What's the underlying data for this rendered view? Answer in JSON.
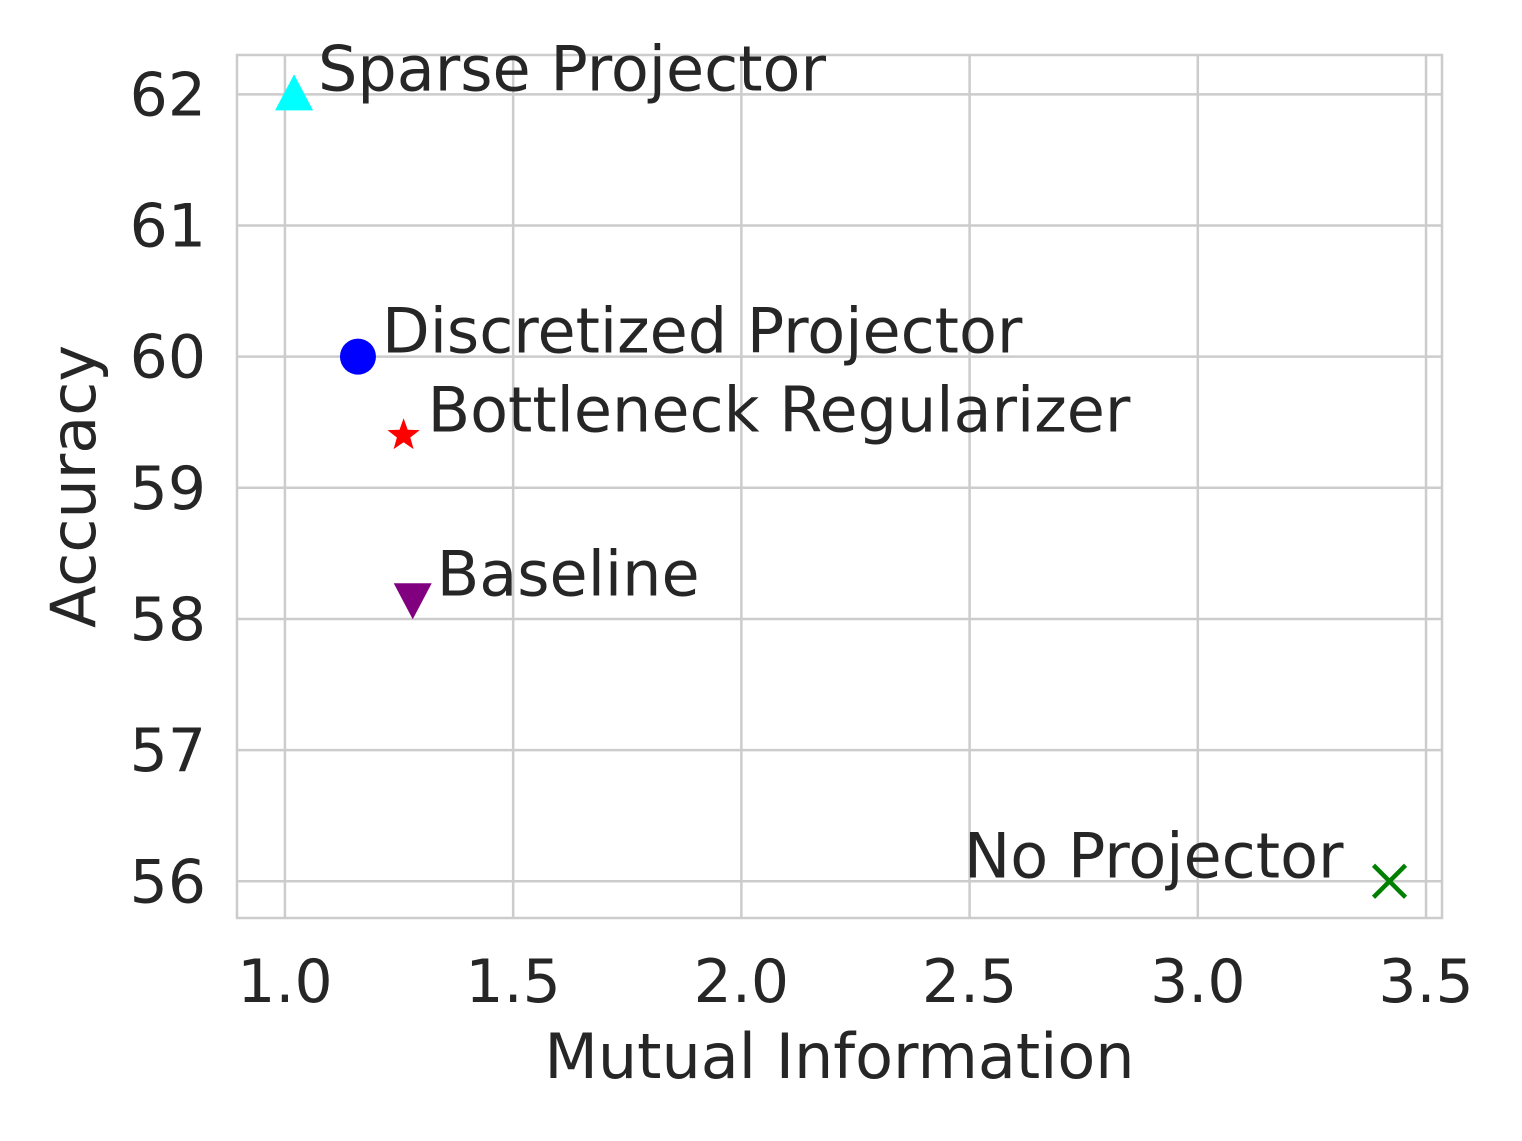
{
  "chart_data": {
    "type": "scatter",
    "title": "",
    "xlabel": "Mutual Information",
    "ylabel": "Accuracy",
    "xlim": [
      0.895,
      3.535
    ],
    "ylim": [
      55.72,
      62.3
    ],
    "xticks": [
      1.0,
      1.5,
      2.0,
      2.5,
      3.0,
      3.5
    ],
    "xtick_labels": [
      "1.0",
      "1.5",
      "2.0",
      "2.5",
      "3.0",
      "3.5"
    ],
    "yticks": [
      56,
      57,
      58,
      59,
      60,
      61,
      62
    ],
    "ytick_labels": [
      "56",
      "57",
      "58",
      "59",
      "60",
      "61",
      "62"
    ],
    "grid": true,
    "legend": "none",
    "points": [
      {
        "label": "Sparse Projector",
        "x": 1.02,
        "y": 62.0,
        "marker": "triangle-up",
        "color": "#00ffff",
        "label_side": "right"
      },
      {
        "label": "Discretized Projector",
        "x": 1.16,
        "y": 60.0,
        "marker": "circle",
        "color": "#0000ff",
        "label_side": "right"
      },
      {
        "label": "Bottleneck Regularizer",
        "x": 1.26,
        "y": 59.4,
        "marker": "star",
        "color": "#ff0000",
        "label_side": "right"
      },
      {
        "label": "Baseline",
        "x": 1.28,
        "y": 58.15,
        "marker": "triangle-down",
        "color": "#800080",
        "label_side": "right"
      },
      {
        "label": "No Projector",
        "x": 3.42,
        "y": 56.0,
        "marker": "x",
        "color": "#008000",
        "label_side": "left"
      }
    ]
  }
}
